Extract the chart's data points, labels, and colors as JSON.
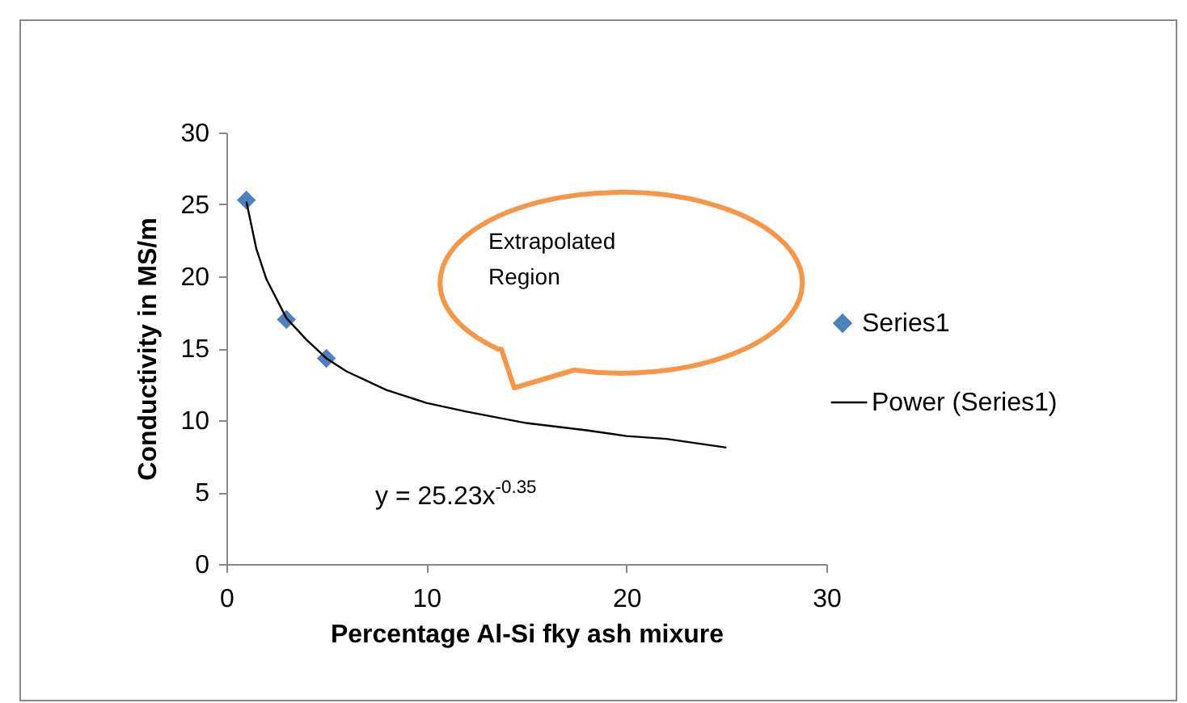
{
  "chart_data": {
    "type": "scatter",
    "xlabel": "Percentage Al-Si fky ash mixure",
    "ylabel": "Conductivity in MS/m",
    "xlim": [
      0,
      30
    ],
    "xticks": [
      0,
      10,
      20,
      30
    ],
    "ylim": [
      0,
      30
    ],
    "yticks": [
      0,
      5,
      10,
      15,
      20,
      25,
      30
    ],
    "grid": false,
    "legend": "right",
    "marker": "diamond",
    "series": [
      {
        "name": "Series1",
        "color": "#4f81bd",
        "x": [
          1,
          3,
          5
        ],
        "values": [
          25.3,
          17,
          14.3
        ]
      },
      {
        "name": "Power (Series1)",
        "type": "line",
        "color": "#000000",
        "marker": "none",
        "x": [
          1,
          1.5,
          2,
          3,
          4,
          5,
          6,
          8,
          10,
          12,
          15,
          18,
          20,
          22,
          25
        ],
        "values": [
          25.2,
          21.9,
          19.8,
          17.1,
          15.6,
          14.3,
          13.4,
          12.1,
          11.2,
          10.6,
          9.8,
          9.3,
          8.9,
          8.7,
          8.1
        ]
      }
    ],
    "annotations": [
      "Extrapolated Region",
      "y = 25.23x$^{-0.35}$"
    ]
  }
}
